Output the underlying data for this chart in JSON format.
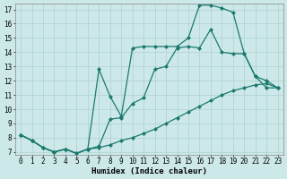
{
  "title": "",
  "xlabel": "Humidex (Indice chaleur)",
  "ylabel": "",
  "bg_color": "#cce8e8",
  "grid_color": "#b0d0d0",
  "line_color": "#1a7a6e",
  "xlim": [
    -0.5,
    23.5
  ],
  "ylim": [
    6.8,
    17.4
  ],
  "xticks": [
    0,
    1,
    2,
    3,
    4,
    5,
    6,
    7,
    8,
    9,
    10,
    11,
    12,
    13,
    14,
    15,
    16,
    17,
    18,
    19,
    20,
    21,
    22,
    23
  ],
  "yticks": [
    7,
    8,
    9,
    10,
    11,
    12,
    13,
    14,
    15,
    16,
    17
  ],
  "line1_x": [
    0,
    1,
    2,
    3,
    4,
    5,
    6,
    7,
    8,
    9,
    10,
    11,
    12,
    13,
    14,
    15,
    16,
    17,
    18,
    19,
    20,
    21,
    22,
    23
  ],
  "line1_y": [
    8.2,
    7.8,
    7.3,
    7.0,
    7.2,
    6.9,
    7.2,
    7.3,
    7.5,
    7.8,
    8.0,
    8.3,
    8.6,
    9.0,
    9.4,
    9.8,
    10.2,
    10.6,
    11.0,
    11.3,
    11.5,
    11.7,
    11.8,
    11.5
  ],
  "line2_x": [
    0,
    1,
    2,
    3,
    4,
    5,
    6,
    7,
    8,
    9,
    10,
    11,
    12,
    13,
    14,
    15,
    16,
    17,
    18,
    19,
    20,
    21,
    22,
    23
  ],
  "line2_y": [
    8.2,
    7.8,
    7.3,
    7.0,
    7.2,
    6.9,
    7.2,
    7.4,
    9.3,
    9.4,
    10.4,
    10.8,
    12.8,
    13.0,
    14.3,
    14.4,
    14.3,
    15.6,
    14.0,
    13.9,
    13.9,
    12.3,
    11.5,
    11.5
  ],
  "line3_x": [
    0,
    1,
    2,
    3,
    4,
    5,
    6,
    7,
    8,
    9,
    10,
    11,
    12,
    13,
    14,
    15,
    16,
    17,
    18,
    19,
    20,
    21,
    22,
    23
  ],
  "line3_y": [
    8.2,
    7.8,
    7.3,
    7.0,
    7.2,
    6.9,
    7.2,
    12.8,
    10.9,
    9.5,
    14.3,
    14.4,
    14.4,
    14.4,
    14.4,
    15.0,
    17.3,
    17.3,
    17.1,
    16.8,
    13.9,
    12.3,
    12.0,
    11.5
  ],
  "marker": "D",
  "marker_size": 2.0,
  "linewidth": 0.9,
  "tick_fontsize": 5.5,
  "xlabel_fontsize": 6.5
}
